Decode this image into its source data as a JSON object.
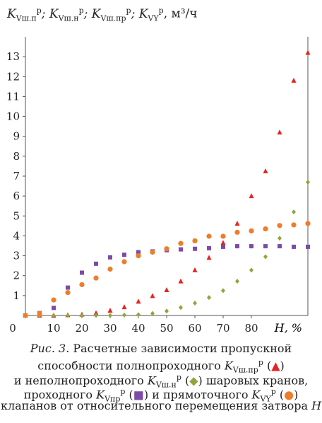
{
  "chart_data": {
    "type": "scatter",
    "ylabel": "K",
    "ylabel_parts": {
      "k1_sub": "Vш.п",
      "k2_sub": "Vш.н",
      "k3_sub": "Vш.пр",
      "k4_sub": "VY",
      "sup": "р",
      "sep": ";",
      "unit": ", м³/ч"
    },
    "xlabel": "H, %",
    "xlim": [
      0,
      100
    ],
    "ylim": [
      0,
      14
    ],
    "x_ticks": [
      0,
      10,
      20,
      30,
      40,
      50,
      60,
      70,
      80
    ],
    "y_ticks": [
      1,
      2,
      3,
      4,
      5,
      6,
      7,
      8,
      9,
      10,
      11,
      12,
      13
    ],
    "grid": false,
    "series": [
      {
        "name": "полнопроходной",
        "marker": "triangle",
        "color": "#e52521",
        "x": [
          0,
          5,
          10,
          15,
          20,
          25,
          30,
          35,
          40,
          45,
          50,
          55,
          60,
          65,
          70,
          75,
          80,
          85,
          90,
          95,
          100
        ],
        "y": [
          0,
          0,
          0,
          0.02,
          0.05,
          0.12,
          0.25,
          0.42,
          0.7,
          0.98,
          1.28,
          1.72,
          2.28,
          2.9,
          3.65,
          4.62,
          6.0,
          7.25,
          9.2,
          11.8,
          13.2
        ]
      },
      {
        "name": "неполнопроходной",
        "marker": "diamond",
        "color": "#8fa63a",
        "x": [
          0,
          5,
          10,
          15,
          20,
          25,
          30,
          35,
          40,
          45,
          50,
          55,
          60,
          65,
          70,
          75,
          80,
          85,
          90,
          95,
          100
        ],
        "y": [
          0,
          0,
          0,
          0,
          0,
          0,
          0,
          0.02,
          0.04,
          0.1,
          0.22,
          0.4,
          0.62,
          0.9,
          1.25,
          1.72,
          2.28,
          2.95,
          3.88,
          5.2,
          6.7
        ]
      },
      {
        "name": "проходной",
        "marker": "square",
        "color": "#7d4ba5",
        "x": [
          0,
          5,
          10,
          15,
          20,
          25,
          30,
          35,
          40,
          45,
          50,
          55,
          60,
          65,
          70,
          75,
          80,
          85,
          90,
          95,
          100
        ],
        "y": [
          0,
          0.12,
          0.38,
          1.4,
          2.15,
          2.6,
          2.92,
          3.05,
          3.18,
          3.22,
          3.28,
          3.32,
          3.35,
          3.38,
          3.45,
          3.48,
          3.48,
          3.48,
          3.48,
          3.45,
          3.45
        ]
      },
      {
        "name": "прямоточный",
        "marker": "circle",
        "color": "#ee7d2a",
        "x": [
          0,
          5,
          10,
          15,
          20,
          25,
          30,
          35,
          40,
          45,
          50,
          55,
          60,
          65,
          70,
          75,
          80,
          85,
          90,
          95,
          100
        ],
        "y": [
          0,
          0.1,
          0.78,
          1.15,
          1.55,
          1.88,
          2.33,
          2.7,
          3.0,
          3.18,
          3.35,
          3.62,
          3.75,
          3.98,
          3.98,
          4.18,
          4.25,
          4.35,
          4.52,
          4.55,
          4.62
        ]
      }
    ]
  },
  "caption": {
    "fig_label": "Рис. 3",
    "line1": ". Расчетные зависимости пропускной",
    "line2a": "способности полнопроходного",
    "sub_full": "Vш.пр",
    "line3a": "и неполнопроходного",
    "sub_partial": "Vш.н",
    "line3b": "шаровых кранов,",
    "line4a": "проходного",
    "sub_pass": "Vпр",
    "line4b": "и прямоточного",
    "sub_straight": "VY",
    "line5": "клапанов от относительного перемещения затвора",
    "line5_var": "H",
    "sym": "K",
    "sup": "р"
  }
}
